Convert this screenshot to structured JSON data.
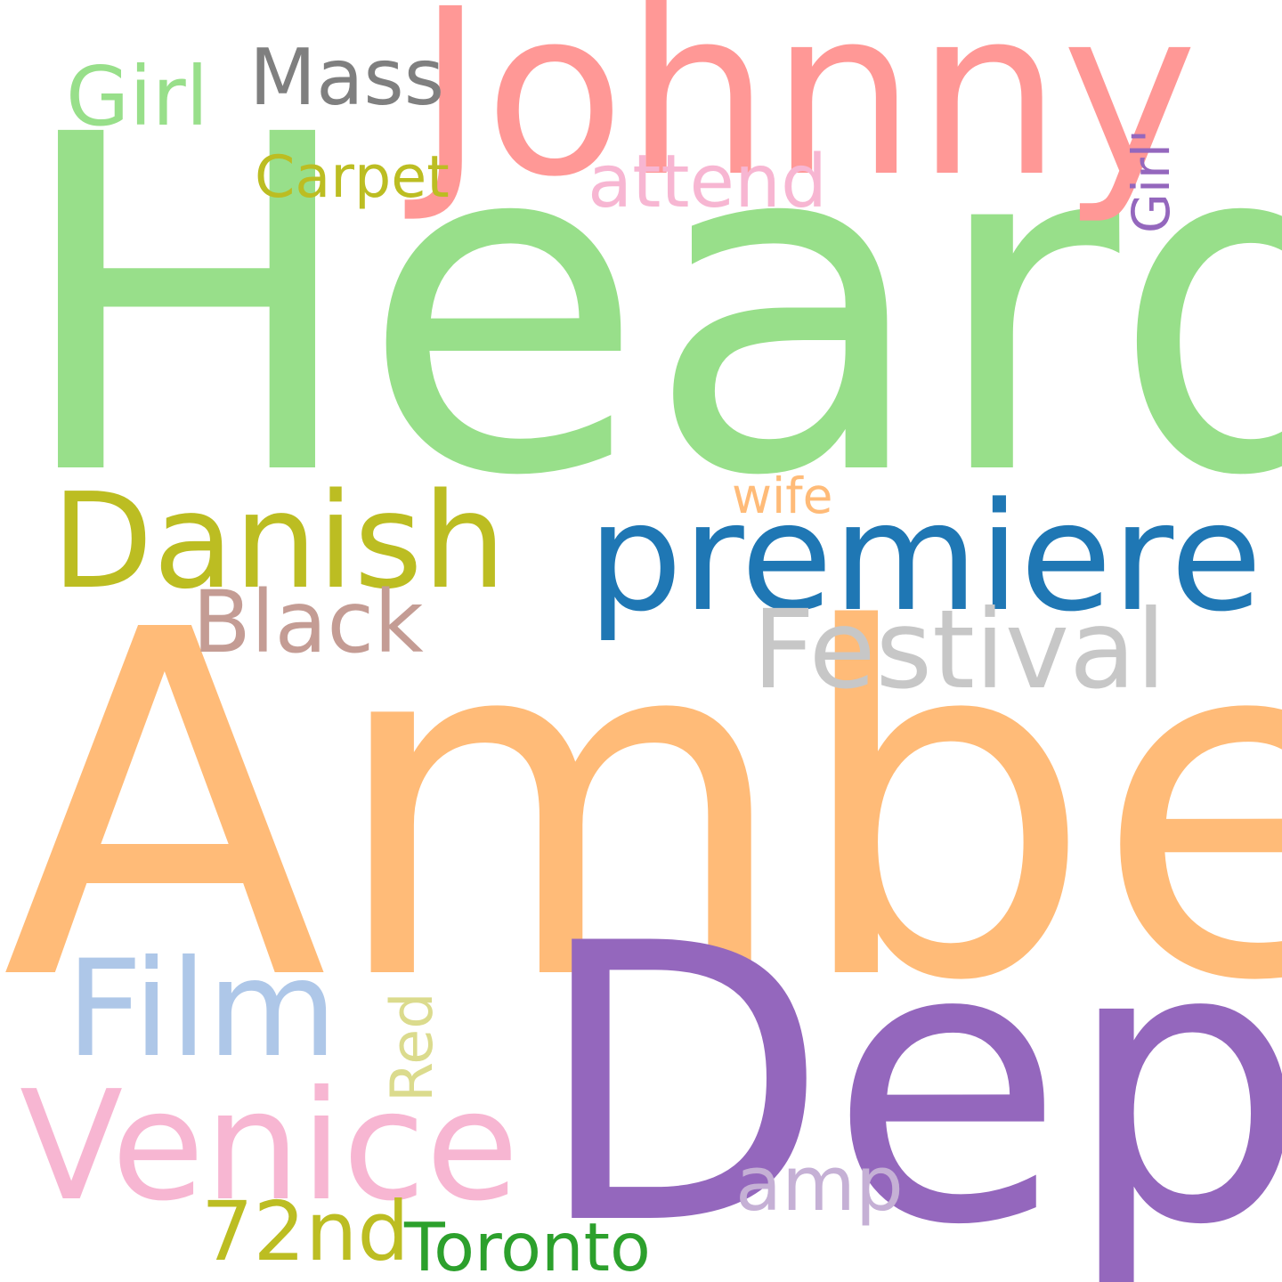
{
  "words": [
    {
      "key": "heard",
      "text": "Heard",
      "color": "#98df8a"
    },
    {
      "key": "amber",
      "text": "Amber",
      "color": "#ffbb78"
    },
    {
      "key": "johnny",
      "text": "Johnny",
      "color": "#ff9896"
    },
    {
      "key": "depp",
      "text": "Depp",
      "color": "#9467bd"
    },
    {
      "key": "premiere",
      "text": "premiere",
      "color": "#1f77b4"
    },
    {
      "key": "danish",
      "text": "Danish",
      "color": "#bcbd22"
    },
    {
      "key": "festival",
      "text": "Festival",
      "color": "#c7c7c7"
    },
    {
      "key": "venice",
      "text": "Venice",
      "color": "#f7b6d2"
    },
    {
      "key": "film",
      "text": "Film",
      "color": "#aec7e8"
    },
    {
      "key": "black",
      "text": "Black",
      "color": "#c49c94"
    },
    {
      "key": "girl",
      "text": "Girl",
      "color": "#98df8a"
    },
    {
      "key": "mass",
      "text": "Mass",
      "color": "#7f7f7f"
    },
    {
      "key": "attend",
      "text": "attend",
      "color": "#f7b6d2"
    },
    {
      "key": "carpet",
      "text": "Carpet",
      "color": "#bcbd22"
    },
    {
      "key": "girl_quote",
      "text": "Girl'",
      "color": "#9467bd"
    },
    {
      "key": "wife",
      "text": "wife",
      "color": "#ffbb78"
    },
    {
      "key": "amp",
      "text": "amp",
      "color": "#c5b0d5"
    },
    {
      "key": "seventytwo",
      "text": "72nd",
      "color": "#bcbd22"
    },
    {
      "key": "toronto",
      "text": "Toronto",
      "color": "#2ca02c"
    },
    {
      "key": "red",
      "text": "Red",
      "color": "#dbdb8d"
    }
  ]
}
